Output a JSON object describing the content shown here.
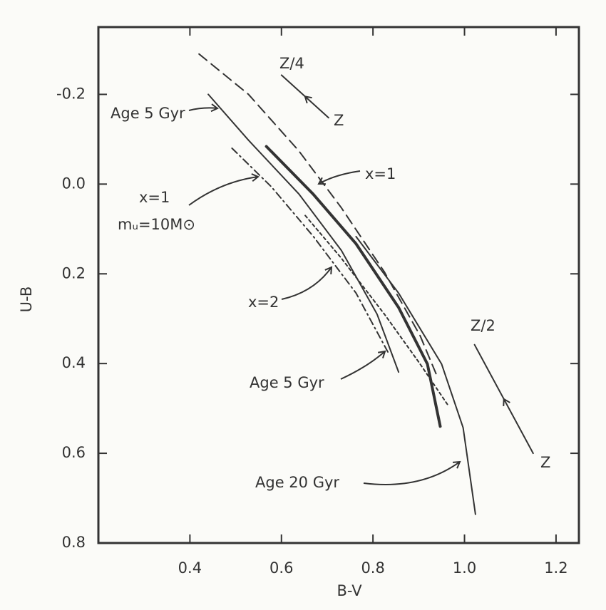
{
  "chart_data": {
    "type": "line",
    "x_label": "B-V",
    "y_label": "U-B",
    "xlim": [
      0.2,
      1.25
    ],
    "ylim": [
      -0.35,
      0.8
    ],
    "y_inverted": true,
    "xticks": [
      0.4,
      0.6,
      0.8,
      {
        "value": 1.0,
        "label": "1.0"
      },
      1.2
    ],
    "yticks": [
      -0.2,
      {
        "value": 0,
        "label": "0.0"
      },
      0.2,
      0.4,
      0.6,
      0.8
    ],
    "series": [
      {
        "color": "#333",
        "style": "solid",
        "width": 2,
        "x": [
          0.44,
          0.528,
          0.638,
          0.731,
          0.809,
          0.856
        ],
        "values": [
          -0.2,
          -0.098,
          0.022,
          0.148,
          0.29,
          0.419
        ]
      },
      {
        "color": "#333",
        "style": "solid",
        "width": 4,
        "x": [
          0.567,
          0.669,
          0.763,
          0.856,
          0.919,
          0.947
        ],
        "values": [
          -0.084,
          0.022,
          0.133,
          0.275,
          0.401,
          0.54
        ]
      },
      {
        "color": "#333",
        "style": "solid",
        "width": 2,
        "x": [
          0.763,
          0.856,
          0.95,
          0.997,
          1.024
        ],
        "values": [
          0.117,
          0.243,
          0.401,
          0.543,
          0.736
        ]
      },
      {
        "color": "#333",
        "style": "dashed",
        "width": 2,
        "x": [
          0.42,
          0.528,
          0.638,
          0.731,
          0.825,
          0.903,
          0.942
        ],
        "values": [
          -0.29,
          -0.2,
          -0.074,
          0.053,
          0.196,
          0.338,
          0.433
        ]
      },
      {
        "color": "#333",
        "style": "dashdot",
        "width": 2,
        "x": [
          0.492,
          0.578,
          0.67,
          0.763,
          0.834
        ],
        "values": [
          -0.08,
          0.006,
          0.117,
          0.243,
          0.377
        ]
      },
      {
        "color": "#333",
        "style": "dotted",
        "width": 2,
        "x": [
          0.652,
          0.73,
          0.825,
          0.903,
          0.966
        ],
        "values": [
          0.07,
          0.164,
          0.29,
          0.401,
          0.496
        ]
      },
      {
        "color": "#333",
        "style": "solid",
        "width": 2,
        "x": [
          0.6,
          0.703
        ],
        "values": [
          -0.243,
          -0.148
        ]
      },
      {
        "color": "#333",
        "style": "solid",
        "width": 2,
        "x": [
          1.022,
          1.15
        ],
        "values": [
          0.358,
          0.6
        ]
      }
    ],
    "annotations": [
      "Z/4",
      "Z",
      "Age 5 Gyr",
      "x=1",
      "x=1",
      "mᵤ=10M⊙",
      "x=2",
      "Age 5 Gyr",
      "Z/2",
      "Z",
      "Age 20 Gyr"
    ]
  }
}
